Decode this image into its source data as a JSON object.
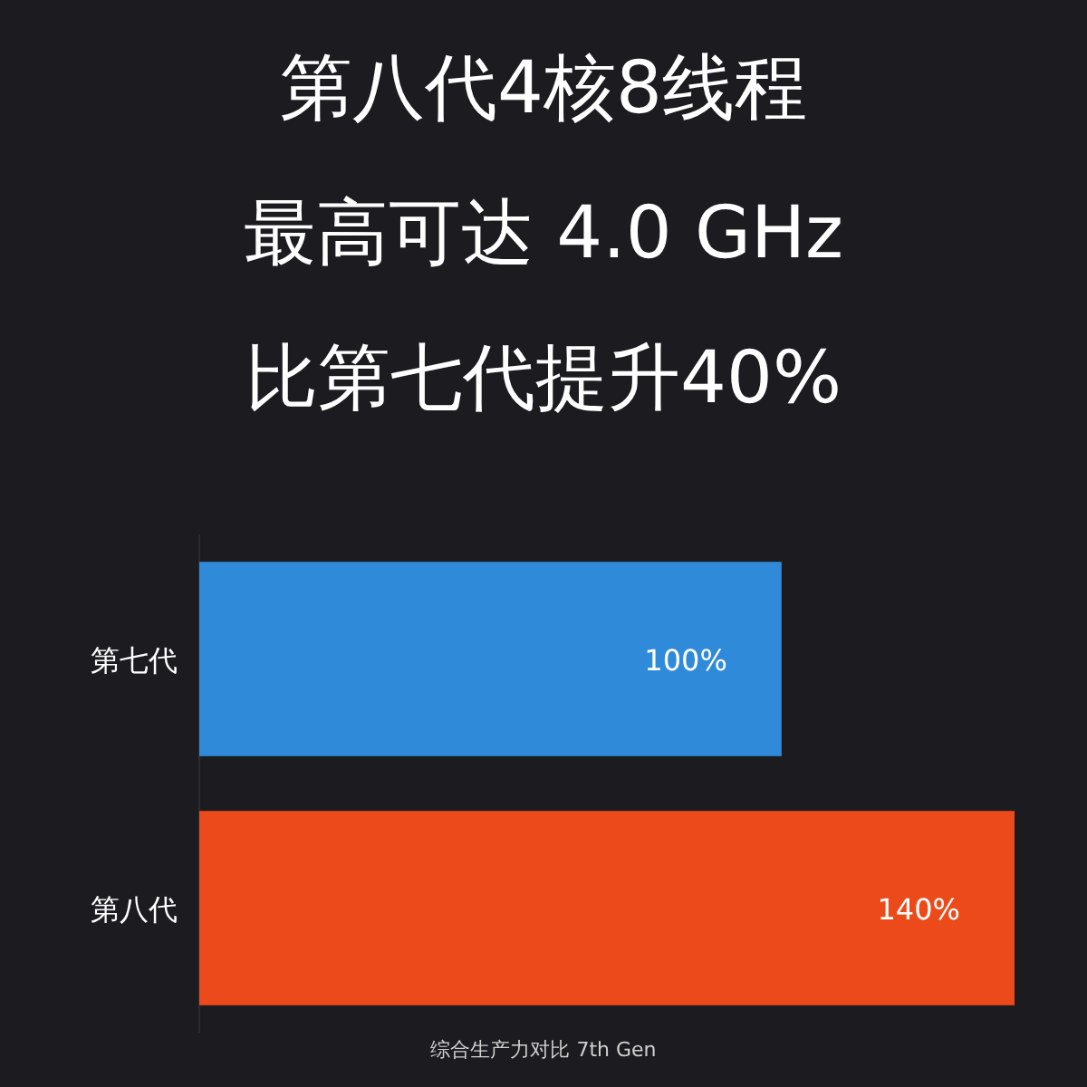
{
  "chart_data": {
    "type": "bar",
    "orientation": "horizontal",
    "title": "第八代4核8线程",
    "subtitle": "最高可达 4.0 GHz",
    "categories": [
      "第七代",
      "第八代"
    ],
    "values": [
      100,
      140
    ],
    "colors": [
      "#2f8bd9",
      "#ec4a1a"
    ],
    "value_labels": [
      "100%",
      "140%"
    ],
    "annotations": [
      "比第七代提升40%",
      "综合生产力对比 7th Gen"
    ]
  }
}
